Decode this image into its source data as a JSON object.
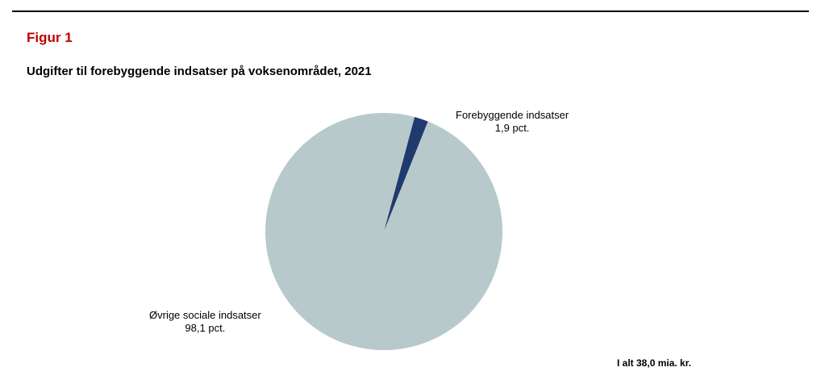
{
  "figure": {
    "label": "Figur 1",
    "title": "Udgifter til forebyggende indsatser på voksenområdet, 2021",
    "total_note": "I alt 38,0 mia. kr."
  },
  "colors": {
    "figure_label": "#c00000",
    "slice_forebyggende": "#1f3b6e",
    "slice_ovrige": "#b7c9cb"
  },
  "chart_data": {
    "type": "pie",
    "title": "Udgifter til forebyggende indsatser på voksenområdet, 2021",
    "unit": "pct.",
    "slices": [
      {
        "label": "Forebyggende indsatser",
        "value": 1.9,
        "value_label": "1,9 pct.",
        "color": "#1f3b6e"
      },
      {
        "label": "Øvrige sociale indsatser",
        "value": 98.1,
        "value_label": "98,1 pct.",
        "color": "#b7c9cb"
      }
    ],
    "start_angle_deg": 15,
    "direction": "clockwise"
  }
}
